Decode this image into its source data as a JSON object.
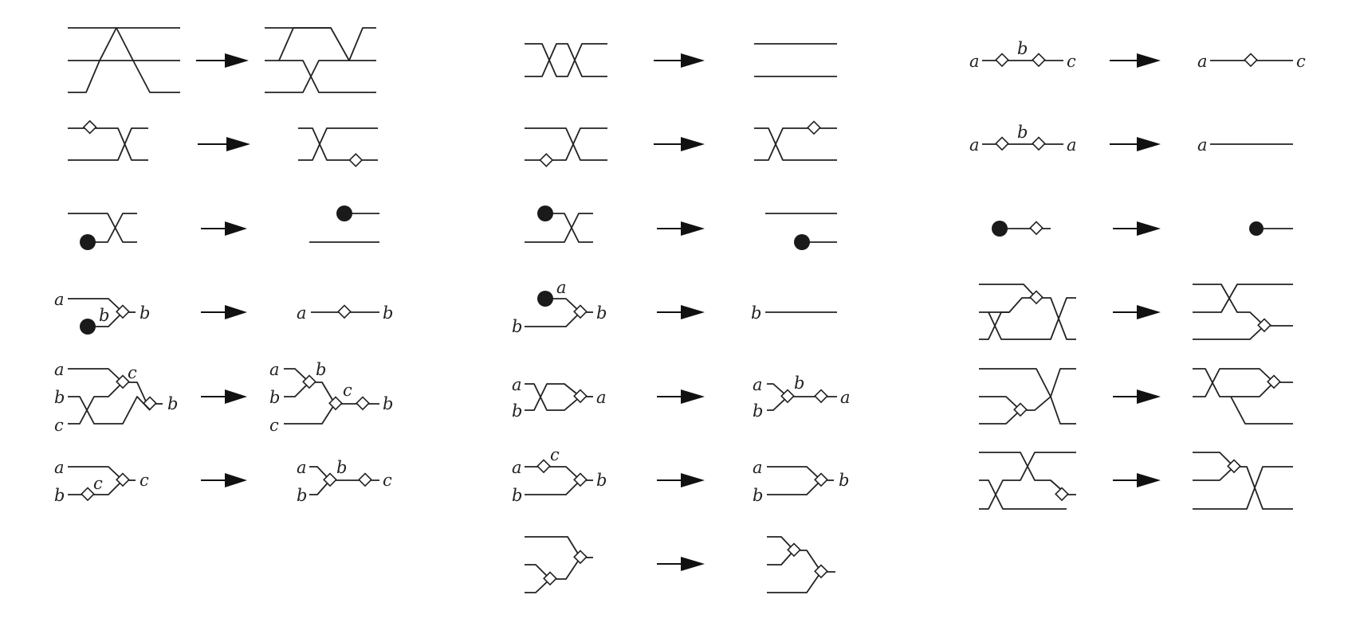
{
  "labels": {
    "a": "a",
    "b": "b",
    "c": "c"
  },
  "colors": {
    "background": "#ffffff",
    "ink": "#222222",
    "unit_fill": "#1a1a1a",
    "node_fill": "#ffffff"
  },
  "shapes": {
    "node": "diamond",
    "unit": "filled-circle",
    "arrow": "right-arrow"
  }
}
